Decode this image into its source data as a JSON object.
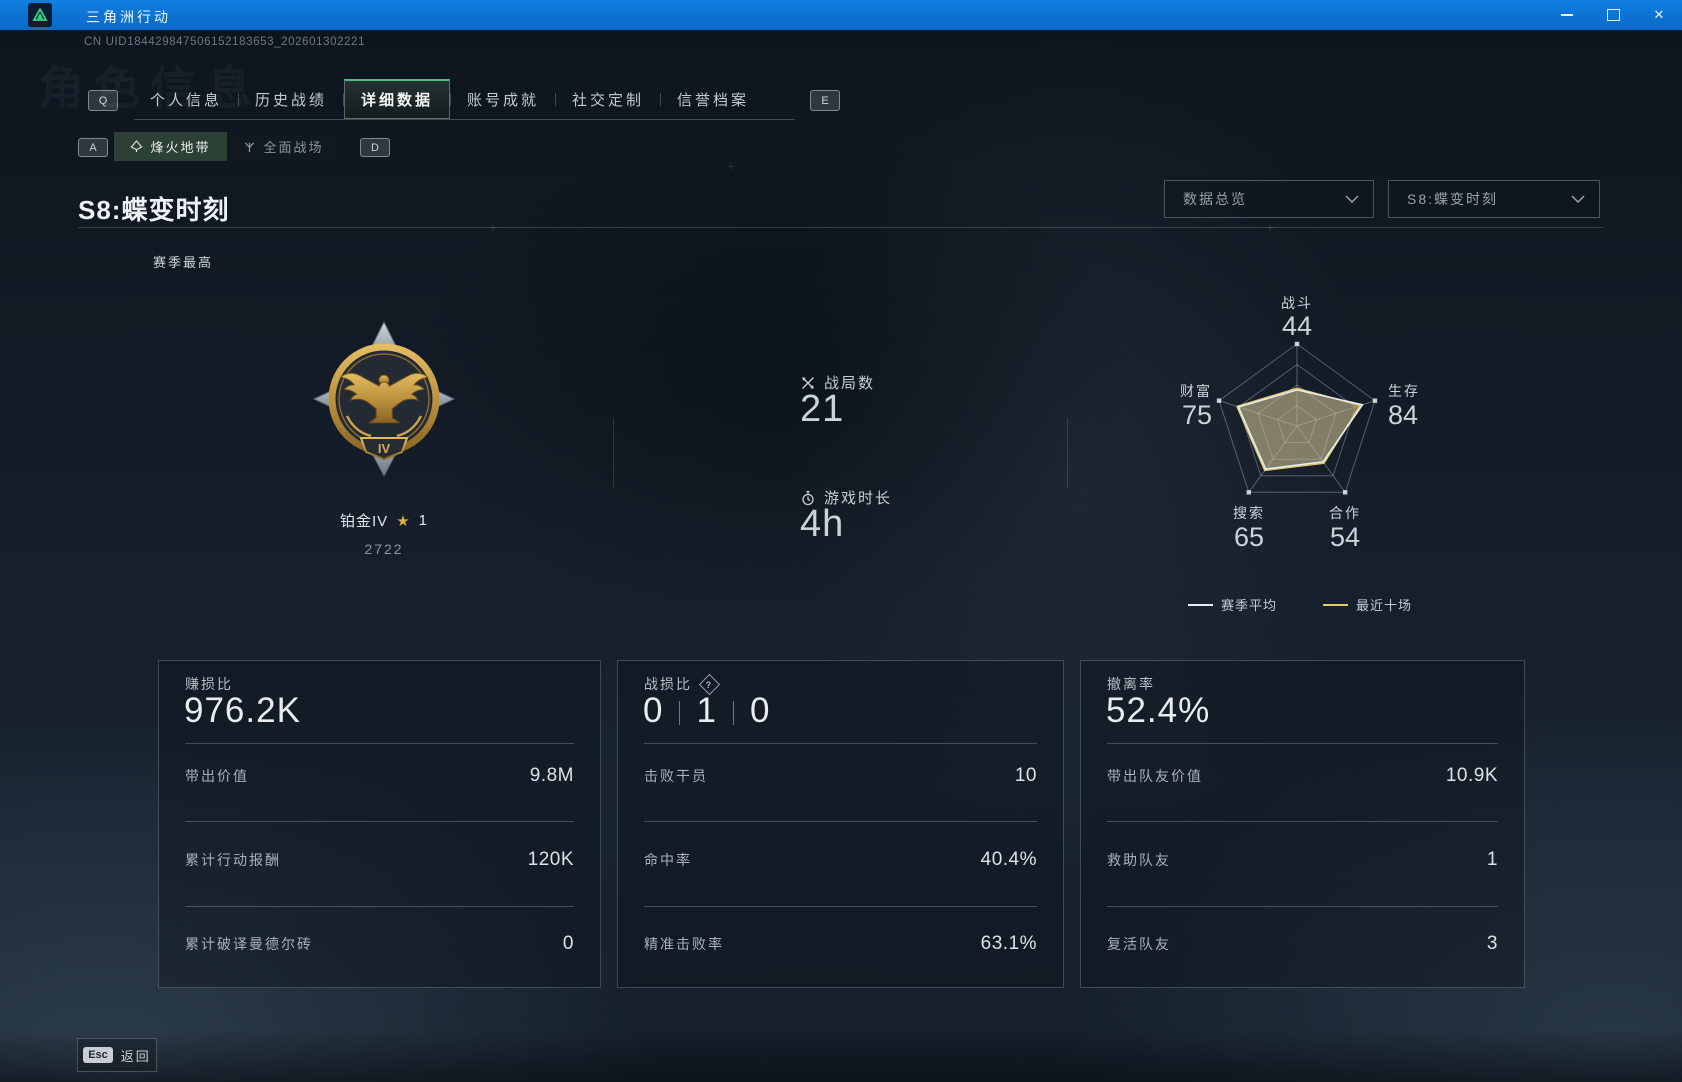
{
  "window": {
    "title": "三角洲行动",
    "controls": {
      "minimize": "minimize",
      "maximize": "maximize",
      "close": "✕"
    }
  },
  "header": {
    "uid": "CN UID184429847506152183653_202601302221",
    "watermark": "角色信息",
    "tab_key_left": "Q",
    "tab_key_right": "E",
    "tabs": [
      {
        "label": "个人信息",
        "active": false
      },
      {
        "label": "历史战绩",
        "active": false
      },
      {
        "label": "详细数据",
        "active": true
      },
      {
        "label": "账号成就",
        "active": false
      },
      {
        "label": "社交定制",
        "active": false
      },
      {
        "label": "信誉档案",
        "active": false
      }
    ],
    "subtab_key_left": "A",
    "subtab_key_right": "D",
    "subtabs": [
      {
        "label": "烽火地带",
        "active": true
      },
      {
        "label": "全面战场",
        "active": false
      }
    ]
  },
  "season": {
    "title": "S8:蝶变时刻",
    "filter_overview": "数据总览",
    "filter_season": "S8:蝶变时刻",
    "season_best_label": "赛季最高"
  },
  "rank": {
    "name": "铂金IV",
    "star_icon": "★",
    "star_count": "1",
    "score": "2722",
    "tier_numeral": "IV"
  },
  "overview": {
    "battles": {
      "label": "战局数",
      "value": "21"
    },
    "playtime": {
      "label": "游戏时长",
      "value": "4h"
    }
  },
  "chart_data": {
    "type": "radar",
    "categories": [
      "战斗",
      "生存",
      "合作",
      "搜索",
      "财富"
    ],
    "axis_values": [
      44,
      84,
      54,
      65,
      75
    ],
    "max": 100,
    "series": [
      {
        "name": "赛季平均",
        "color": "#e9edf1",
        "values": [
          44,
          84,
          54,
          65,
          75
        ]
      },
      {
        "name": "最近十场",
        "color": "#e0cb6e",
        "values": [
          46,
          81,
          56,
          67,
          77
        ]
      }
    ],
    "legend_position": "bottom",
    "grid": true
  },
  "cards": [
    {
      "title": "赚损比",
      "value": "976.2K",
      "rows": [
        {
          "label": "带出价值",
          "value": "9.8M"
        },
        {
          "label": "累计行动报酬",
          "value": "120K"
        },
        {
          "label": "累计破译曼德尔砖",
          "value": "0"
        }
      ]
    },
    {
      "title": "战损比",
      "help_glyph": "?",
      "value_parts": [
        "0",
        "1",
        "0"
      ],
      "rows": [
        {
          "label": "击败干员",
          "value": "10"
        },
        {
          "label": "命中率",
          "value": "40.4%"
        },
        {
          "label": "精准击败率",
          "value": "63.1%"
        }
      ]
    },
    {
      "title": "撤离率",
      "value": "52.4%",
      "rows": [
        {
          "label": "带出队友价值",
          "value": "10.9K"
        },
        {
          "label": "救助队友",
          "value": "1"
        },
        {
          "label": "复活队友",
          "value": "3"
        }
      ]
    }
  ],
  "footer": {
    "key": "Esc",
    "label": "返回"
  }
}
